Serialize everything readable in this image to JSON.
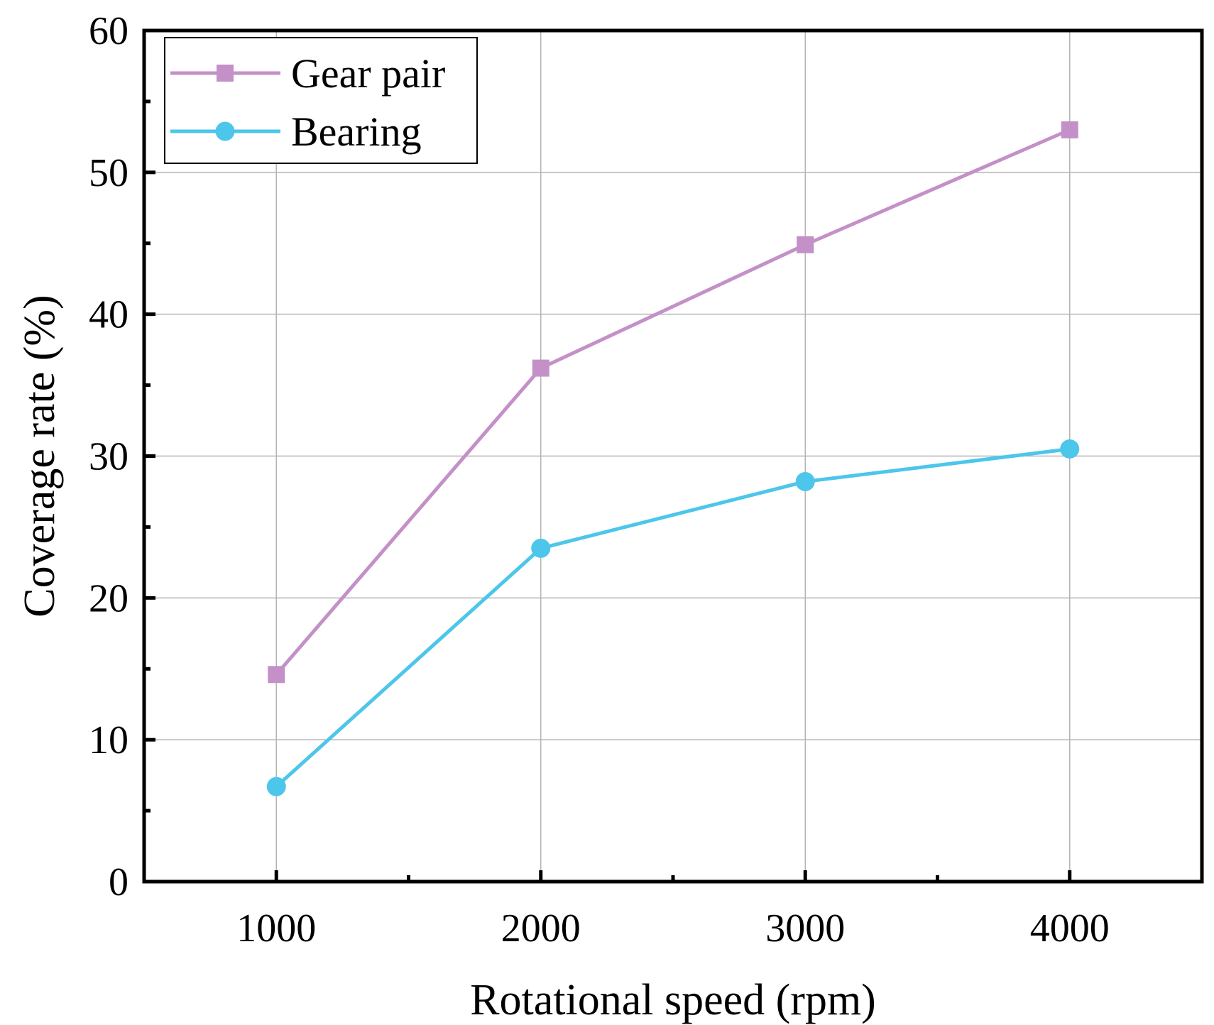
{
  "chart_data": {
    "type": "line",
    "title": "",
    "xlabel": "Rotational speed (rpm)",
    "ylabel": "Coverage rate (%)",
    "x": [
      1000,
      2000,
      3000,
      4000
    ],
    "xlim": [
      500,
      4500
    ],
    "ylim": [
      0,
      60
    ],
    "xticks": [
      1000,
      2000,
      3000,
      4000
    ],
    "xticks_minor": [
      1500,
      2500,
      3500
    ],
    "yticks": [
      0,
      10,
      20,
      30,
      40,
      50,
      60
    ],
    "yticks_minor": [
      5,
      15,
      25,
      35,
      45,
      55
    ],
    "grid": true,
    "legend_position": "top-left",
    "series": [
      {
        "name": "Gear pair",
        "marker": "square",
        "color": "#c490c8",
        "values": [
          14.6,
          36.2,
          44.9,
          53.0
        ]
      },
      {
        "name": "Bearing",
        "marker": "circle",
        "color": "#4cc6ea",
        "values": [
          6.7,
          23.5,
          28.2,
          30.5
        ]
      }
    ]
  }
}
